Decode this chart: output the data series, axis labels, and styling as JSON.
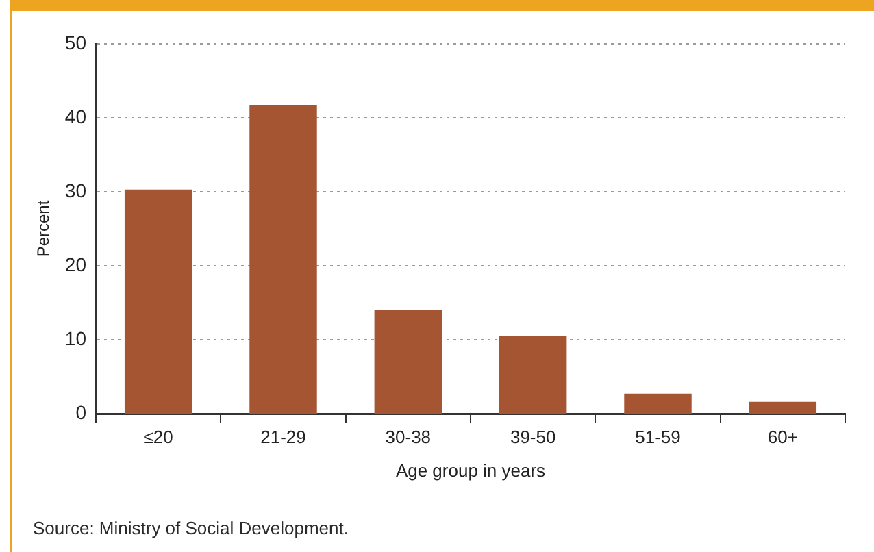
{
  "chart_data": {
    "type": "bar",
    "categories": [
      "≤20",
      "21-29",
      "30-38",
      "39-50",
      "51-59",
      "60+"
    ],
    "values": [
      30.3,
      41.7,
      14.0,
      10.5,
      2.7,
      1.6
    ],
    "color": "#a65533",
    "xlabel": "Age group in years",
    "ylabel": "Percent",
    "ylim": [
      0,
      50
    ],
    "yticks": [
      0,
      10,
      20,
      30,
      40,
      50
    ],
    "grid": "y",
    "annotations": [
      "Source: Ministry of Social Development."
    ]
  }
}
